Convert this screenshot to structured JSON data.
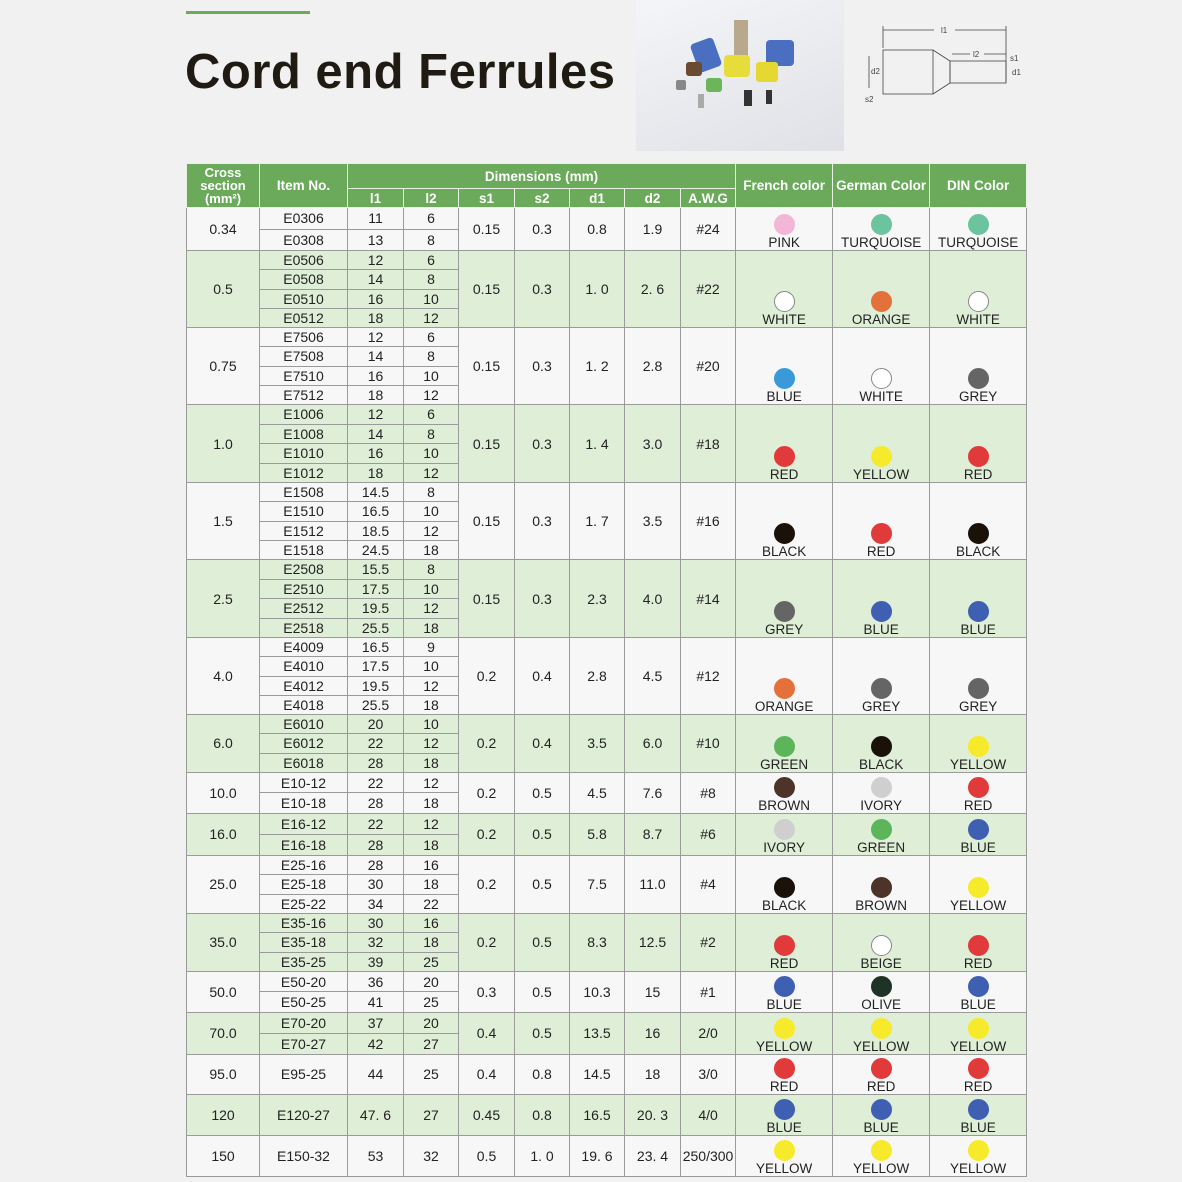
{
  "title": "Cord end Ferrules",
  "diagram_labels": {
    "l1": "l1",
    "l2": "l2",
    "s1": "s1",
    "s2": "s2",
    "d1": "d1",
    "d2": "d2"
  },
  "header": {
    "cross_section": "Cross section (mm²)",
    "item_no": "Item No.",
    "dimensions": "Dimensions (mm)",
    "l1": "l1",
    "l2": "l2",
    "s1": "s1",
    "s2": "s2",
    "d1": "d1",
    "d2": "d2",
    "awg": "A.W.G",
    "french": "French color",
    "german": "German Color",
    "din": "DIN  Color"
  },
  "colors": {
    "PINK": "#f2b6d6",
    "TURQUOISE": "#6cc3a0",
    "WHITE": "#ffffff",
    "ORANGE": "#e5713a",
    "BLUE": "#3f5fb3",
    "LIGHTBLUE": "#3a9ad9",
    "GREY": "#666565",
    "RED": "#e03a3a",
    "YELLOW": "#f6ea2a",
    "BLACK": "#1a1209",
    "GREEN": "#5db55b",
    "BROWN": "#4e3329",
    "IVORY": "#cfcfcf",
    "BEIGE": "#ffffff",
    "OLIVE": "#1e3326"
  },
  "groups": [
    {
      "cross": "0.34",
      "items": [
        [
          "E0306",
          "11",
          "6"
        ],
        [
          "E0308",
          "13",
          "8"
        ]
      ],
      "s1": "0.15",
      "s2": "0.3",
      "d1": "0.8",
      "d2": "1.9",
      "awg": "#24",
      "french": "PINK",
      "german": "TURQUOISE",
      "din": "TURQUOISE"
    },
    {
      "cross": "0.5",
      "items": [
        [
          "E0506",
          "12",
          "6"
        ],
        [
          "E0508",
          "14",
          "8"
        ],
        [
          "E0510",
          "16",
          "10"
        ],
        [
          "E0512",
          "18",
          "12"
        ]
      ],
      "s1": "0.15",
      "s2": "0.3",
      "d1": "1. 0",
      "d2": "2. 6",
      "awg": "#22",
      "french": "WHITE",
      "german": "ORANGE",
      "din": "WHITE"
    },
    {
      "cross": "0.75",
      "items": [
        [
          "E7506",
          "12",
          "6"
        ],
        [
          "E7508",
          "14",
          "8"
        ],
        [
          "E7510",
          "16",
          "10"
        ],
        [
          "E7512",
          "18",
          "12"
        ]
      ],
      "s1": "0.15",
      "s2": "0.3",
      "d1": "1. 2",
      "d2": "2.8",
      "awg": "#20",
      "french": "BLUE",
      "german": "WHITE",
      "din": "GREY"
    },
    {
      "cross": "1.0",
      "items": [
        [
          "E1006",
          "12",
          "6"
        ],
        [
          "E1008",
          "14",
          "8"
        ],
        [
          "E1010",
          "16",
          "10"
        ],
        [
          "E1012",
          "18",
          "12"
        ]
      ],
      "s1": "0.15",
      "s2": "0.3",
      "d1": "1. 4",
      "d2": "3.0",
      "awg": "#18",
      "french": "RED",
      "german": "YELLOW",
      "din": "RED"
    },
    {
      "cross": "1.5",
      "items": [
        [
          "E1508",
          "14.5",
          "8"
        ],
        [
          "E1510",
          "16.5",
          "10"
        ],
        [
          "E1512",
          "18.5",
          "12"
        ],
        [
          "E1518",
          "24.5",
          "18"
        ]
      ],
      "s1": "0.15",
      "s2": "0.3",
      "d1": "1. 7",
      "d2": "3.5",
      "awg": "#16",
      "french": "BLACK",
      "german": "RED",
      "din": "BLACK"
    },
    {
      "cross": "2.5",
      "items": [
        [
          "E2508",
          "15.5",
          "8"
        ],
        [
          "E2510",
          "17.5",
          "10"
        ],
        [
          "E2512",
          "19.5",
          "12"
        ],
        [
          "E2518",
          "25.5",
          "18"
        ]
      ],
      "s1": "0.15",
      "s2": "0.3",
      "d1": "2.3",
      "d2": "4.0",
      "awg": "#14",
      "french": "GREY",
      "german": "BLUE",
      "din": "BLUE"
    },
    {
      "cross": "4.0",
      "items": [
        [
          "E4009",
          "16.5",
          "9"
        ],
        [
          "E4010",
          "17.5",
          "10"
        ],
        [
          "E4012",
          "19.5",
          "12"
        ],
        [
          "E4018",
          "25.5",
          "18"
        ]
      ],
      "s1": "0.2",
      "s2": "0.4",
      "d1": "2.8",
      "d2": "4.5",
      "awg": "#12",
      "french": "ORANGE",
      "german": "GREY",
      "din": "GREY"
    },
    {
      "cross": "6.0",
      "items": [
        [
          "E6010",
          "20",
          "10"
        ],
        [
          "E6012",
          "22",
          "12"
        ],
        [
          "E6018",
          "28",
          "18"
        ]
      ],
      "s1": "0.2",
      "s2": "0.4",
      "d1": "3.5",
      "d2": "6.0",
      "awg": "#10",
      "french": "GREEN",
      "german": "BLACK",
      "din": "YELLOW"
    },
    {
      "cross": "10.0",
      "items": [
        [
          "E10-12",
          "22",
          "12"
        ],
        [
          "E10-18",
          "28",
          "18"
        ]
      ],
      "s1": "0.2",
      "s2": "0.5",
      "d1": "4.5",
      "d2": "7.6",
      "awg": "#8",
      "french": "BROWN",
      "german": "IVORY",
      "din": "RED"
    },
    {
      "cross": "16.0",
      "items": [
        [
          "E16-12",
          "22",
          "12"
        ],
        [
          "E16-18",
          "28",
          "18"
        ]
      ],
      "s1": "0.2",
      "s2": "0.5",
      "d1": "5.8",
      "d2": "8.7",
      "awg": "#6",
      "french": "IVORY",
      "german": "GREEN",
      "din": "BLUE"
    },
    {
      "cross": "25.0",
      "items": [
        [
          "E25-16",
          "28",
          "16"
        ],
        [
          "E25-18",
          "30",
          "18"
        ],
        [
          "E25-22",
          "34",
          "22"
        ]
      ],
      "s1": "0.2",
      "s2": "0.5",
      "d1": "7.5",
      "d2": "11.0",
      "awg": "#4",
      "french": "BLACK",
      "german": "BROWN",
      "din": "YELLOW"
    },
    {
      "cross": "35.0",
      "items": [
        [
          "E35-16",
          "30",
          "16"
        ],
        [
          "E35-18",
          "32",
          "18"
        ],
        [
          "E35-25",
          "39",
          "25"
        ]
      ],
      "s1": "0.2",
      "s2": "0.5",
      "d1": "8.3",
      "d2": "12.5",
      "awg": "#2",
      "french": "RED",
      "german": "BEIGE",
      "din": "RED"
    },
    {
      "cross": "50.0",
      "items": [
        [
          "E50-20",
          "36",
          "20"
        ],
        [
          "E50-25",
          "41",
          "25"
        ]
      ],
      "s1": "0.3",
      "s2": "0.5",
      "d1": "10.3",
      "d2": "15",
      "awg": "#1",
      "french": "BLUE",
      "german": "OLIVE",
      "din": "BLUE"
    },
    {
      "cross": "70.0",
      "items": [
        [
          "E70-20",
          "37",
          "20"
        ],
        [
          "E70-27",
          "42",
          "27"
        ]
      ],
      "s1": "0.4",
      "s2": "0.5",
      "d1": "13.5",
      "d2": "16",
      "awg": "2/0",
      "french": "YELLOW",
      "german": "YELLOW",
      "din": "YELLOW"
    },
    {
      "cross": "95.0",
      "items": [
        [
          "E95-25",
          "44",
          "25"
        ]
      ],
      "s1": "0.4",
      "s2": "0.8",
      "d1": "14.5",
      "d2": "18",
      "awg": "3/0",
      "french": "RED",
      "german": "RED",
      "din": "RED"
    },
    {
      "cross": "120",
      "items": [
        [
          "E120-27",
          "47. 6",
          "27"
        ]
      ],
      "s1": "0.45",
      "s2": "0.8",
      "d1": "16.5",
      "d2": "20. 3",
      "awg": "4/0",
      "french": "BLUE",
      "german": "BLUE",
      "din": "BLUE"
    },
    {
      "cross": "150",
      "items": [
        [
          "E150-32",
          "53",
          "32"
        ]
      ],
      "s1": "0.5",
      "s2": "1. 0",
      "d1": "19. 6",
      "d2": "23. 4",
      "awg": "250/300",
      "french": "YELLOW",
      "german": "YELLOW",
      "din": "YELLOW"
    }
  ]
}
